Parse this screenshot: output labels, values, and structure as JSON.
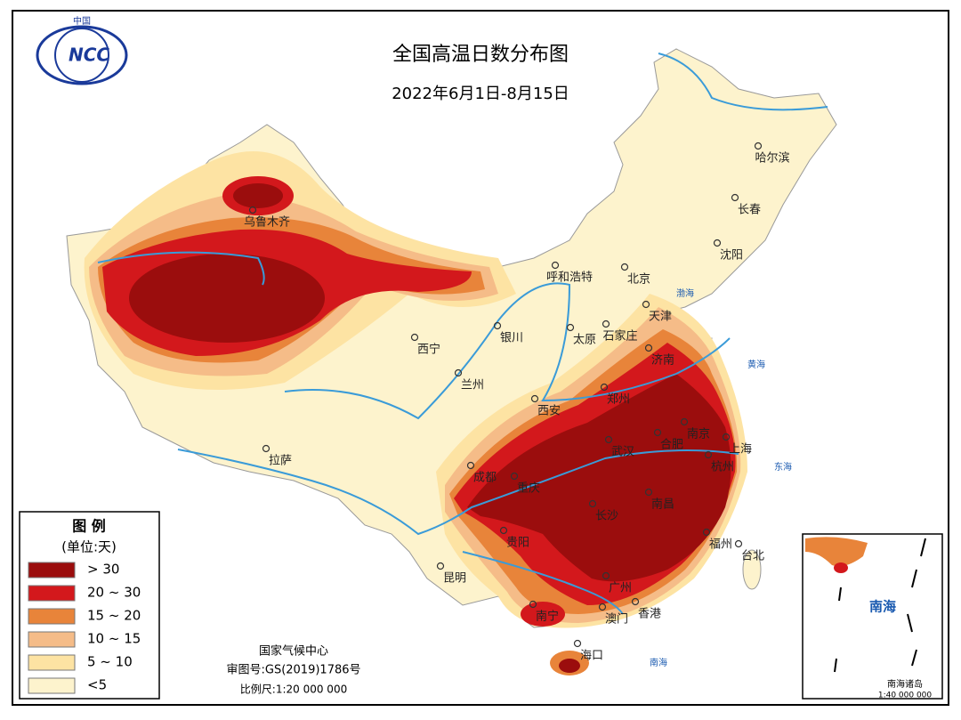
{
  "header": {
    "logo": "NCC",
    "logo_top": "中国",
    "title": "全国高温日数分布图",
    "subtitle": "2022年6月1日-8月15日"
  },
  "legend": {
    "title": "图 例",
    "unit": "(单位:天)",
    "items": [
      {
        "label": "> 30",
        "color": "#9b0d0d"
      },
      {
        "label": "20 ~ 30",
        "color": "#d3181c"
      },
      {
        "label": "15 ~ 20",
        "color": "#e8843a"
      },
      {
        "label": "10 ~ 15",
        "color": "#f5bc88"
      },
      {
        "label": "5 ~ 10",
        "color": "#fde3a3"
      },
      {
        "label": "<5",
        "color": "#fdf3cd"
      }
    ]
  },
  "cities": [
    "乌鲁木齐",
    "哈尔滨",
    "长春",
    "沈阳",
    "呼和浩特",
    "北京",
    "天津",
    "石家庄",
    "太原",
    "济南",
    "银川",
    "西宁",
    "兰州",
    "西安",
    "郑州",
    "南京",
    "合肥",
    "上海",
    "杭州",
    "武汉",
    "成都",
    "重庆",
    "长沙",
    "南昌",
    "拉萨",
    "贵阳",
    "福州",
    "台北",
    "昆明",
    "广州",
    "南宁",
    "澳门",
    "香港",
    "海口"
  ],
  "seas": [
    "渤海",
    "黄海",
    "东海",
    "南海"
  ],
  "footer": {
    "agency": "国家气候中心",
    "approval": "审图号:GS(2019)1786号",
    "scale": "比例尺:1:20 000 000"
  },
  "inset": {
    "sea": "南海",
    "name": "南海诸岛",
    "scale": "1:40 000 000"
  }
}
